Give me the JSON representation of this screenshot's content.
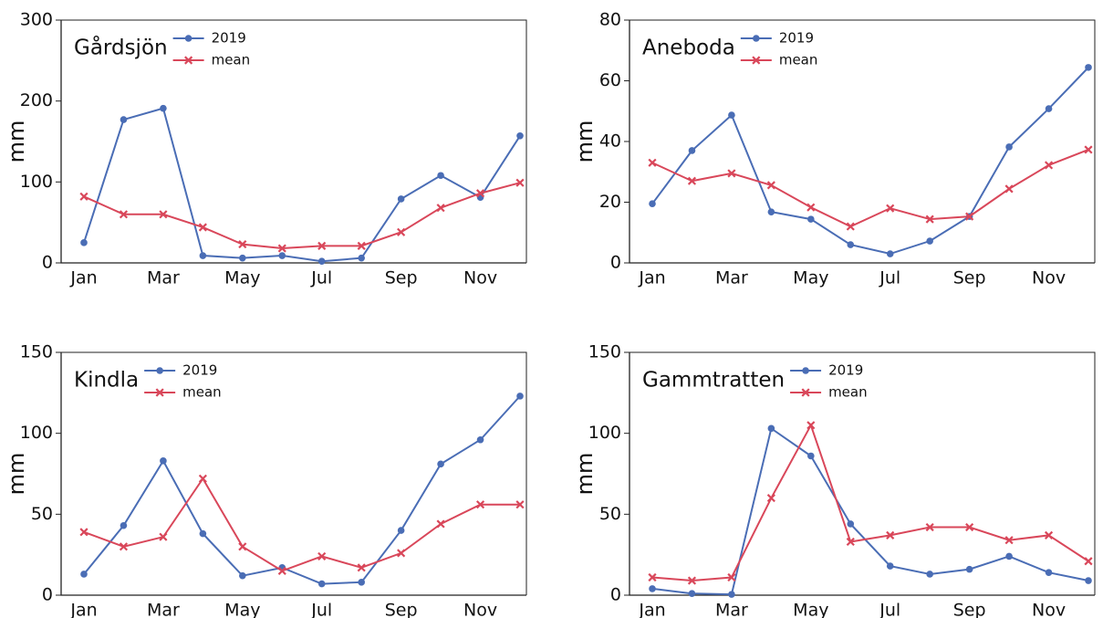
{
  "chart_data": [
    {
      "type": "line",
      "title": "Gårdsjön",
      "ylabel": "mm",
      "categories": [
        "Jan",
        null,
        "Mar",
        null,
        "May",
        null,
        "Jul",
        null,
        "Sep",
        null,
        "Nov",
        null
      ],
      "ylim": [
        0,
        300
      ],
      "yticks": [
        0,
        100,
        200,
        300
      ],
      "series": [
        {
          "name": "2019",
          "color": "#4a6db5",
          "marker": "circle",
          "values": [
            25,
            177,
            191,
            9,
            6,
            9,
            2,
            6,
            79,
            108,
            81,
            157
          ]
        },
        {
          "name": "mean",
          "color": "#d9475a",
          "marker": "x",
          "values": [
            82,
            60,
            60,
            44,
            23,
            18,
            21,
            21,
            38,
            68,
            86,
            99
          ]
        }
      ]
    },
    {
      "type": "line",
      "title": "Aneboda",
      "ylabel": "mm",
      "categories": [
        "Jan",
        null,
        "Mar",
        null,
        "May",
        null,
        "Jul",
        null,
        "Sep",
        null,
        "Nov",
        null
      ],
      "ylim": [
        0,
        80
      ],
      "yticks": [
        0,
        20,
        40,
        60,
        80
      ],
      "series": [
        {
          "name": "2019",
          "color": "#4a6db5",
          "marker": "circle",
          "values": [
            19.5,
            37,
            48.7,
            16.8,
            14.4,
            6,
            3,
            7.2,
            15.3,
            38.2,
            50.8,
            64.4
          ]
        },
        {
          "name": "mean",
          "color": "#d9475a",
          "marker": "x",
          "values": [
            33,
            27,
            29.5,
            25.6,
            18.3,
            12,
            18,
            14.4,
            15.3,
            24.4,
            32.2,
            37.3
          ]
        }
      ]
    },
    {
      "type": "line",
      "title": "Kindla",
      "ylabel": "mm",
      "categories": [
        "Jan",
        null,
        "Mar",
        null,
        "May",
        null,
        "Jul",
        null,
        "Sep",
        null,
        "Nov",
        null
      ],
      "ylim": [
        0,
        150
      ],
      "yticks": [
        0,
        50,
        100,
        150
      ],
      "series": [
        {
          "name": "2019",
          "color": "#4a6db5",
          "marker": "circle",
          "values": [
            13,
            43,
            83,
            38,
            12,
            17,
            7,
            8,
            40,
            81,
            96,
            123
          ]
        },
        {
          "name": "mean",
          "color": "#d9475a",
          "marker": "x",
          "values": [
            39,
            30,
            36,
            72,
            30,
            15,
            24,
            17,
            26,
            44,
            56,
            56
          ]
        }
      ]
    },
    {
      "type": "line",
      "title": "Gammtratten",
      "ylabel": "mm",
      "categories": [
        "Jan",
        null,
        "Mar",
        null,
        "May",
        null,
        "Jul",
        null,
        "Sep",
        null,
        "Nov",
        null
      ],
      "ylim": [
        0,
        150
      ],
      "yticks": [
        0,
        50,
        100,
        150
      ],
      "series": [
        {
          "name": "2019",
          "color": "#4a6db5",
          "marker": "circle",
          "values": [
            4,
            1,
            0.5,
            103,
            86,
            44,
            18,
            13,
            16,
            24,
            14,
            9
          ]
        },
        {
          "name": "mean",
          "color": "#d9475a",
          "marker": "x",
          "values": [
            11,
            9,
            11,
            60,
            105,
            33,
            37,
            42,
            42,
            34,
            37,
            21
          ]
        }
      ]
    }
  ]
}
